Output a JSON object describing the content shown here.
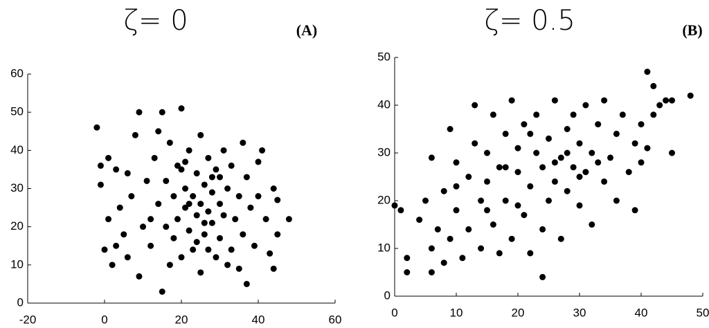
{
  "chart_data": [
    {
      "type": "scatter",
      "title": "ζ= 0",
      "panel_label": "(A)",
      "color": "#000000",
      "x": [
        -2,
        -1,
        -1,
        1,
        1,
        0,
        2,
        3,
        4,
        5,
        6,
        7,
        8,
        9,
        9,
        10,
        11,
        12,
        13,
        14,
        14,
        15,
        15,
        16,
        16,
        17,
        17,
        18,
        18,
        19,
        19,
        20,
        20,
        21,
        21,
        22,
        22,
        23,
        23,
        24,
        24,
        25,
        25,
        25,
        26,
        26,
        27,
        27,
        28,
        28,
        29,
        29,
        30,
        30,
        31,
        31,
        32,
        33,
        33,
        34,
        35,
        35,
        36,
        36,
        37,
        37,
        38,
        39,
        40,
        40,
        41,
        42,
        43,
        44,
        44,
        45,
        45,
        48,
        3,
        6,
        12,
        20,
        24,
        28,
        32,
        26,
        22,
        21,
        27,
        30
      ],
      "values": [
        46,
        36,
        31,
        38,
        22,
        14,
        10,
        35,
        25,
        18,
        12,
        28,
        44,
        50,
        7,
        20,
        32,
        15,
        38,
        45,
        26,
        50,
        3,
        20,
        32,
        42,
        10,
        28,
        17,
        36,
        22,
        51,
        12,
        30,
        25,
        19,
        40,
        28,
        14,
        34,
        23,
        26,
        44,
        8,
        31,
        18,
        24,
        38,
        21,
        29,
        12,
        35,
        26,
        17,
        40,
        23,
        30,
        14,
        36,
        22,
        28,
        9,
        42,
        18,
        5,
        33,
        25,
        15,
        37,
        28,
        40,
        22,
        13,
        30,
        9,
        18,
        27,
        22,
        15,
        34,
        22,
        35,
        16,
        33,
        10,
        21,
        26,
        37,
        14,
        33
      ],
      "xlim": [
        -20,
        60
      ],
      "ylim": [
        0,
        60
      ],
      "xticks": [
        -20,
        0,
        20,
        40,
        60
      ],
      "yticks": [
        0,
        10,
        20,
        30,
        40,
        50,
        60
      ]
    },
    {
      "type": "scatter",
      "title": "ζ= 0.5",
      "panel_label": "(B)",
      "color": "#000000",
      "x": [
        0,
        1,
        2,
        2,
        4,
        5,
        6,
        6,
        6,
        7,
        8,
        8,
        9,
        9,
        10,
        10,
        11,
        12,
        12,
        13,
        13,
        14,
        14,
        15,
        15,
        16,
        16,
        17,
        17,
        18,
        18,
        19,
        19,
        20,
        20,
        21,
        21,
        22,
        22,
        23,
        23,
        24,
        24,
        25,
        25,
        26,
        26,
        27,
        27,
        28,
        28,
        29,
        29,
        30,
        30,
        31,
        31,
        32,
        32,
        33,
        34,
        34,
        35,
        36,
        36,
        37,
        38,
        39,
        39,
        40,
        40,
        41,
        41,
        42,
        42,
        43,
        44,
        45,
        45,
        48,
        24,
        20,
        26,
        22,
        30,
        18,
        28,
        33,
        10,
        15
      ],
      "values": [
        19,
        18,
        8,
        5,
        16,
        20,
        5,
        10,
        29,
        14,
        22,
        7,
        35,
        12,
        28,
        18,
        8,
        25,
        14,
        32,
        40,
        20,
        10,
        30,
        24,
        15,
        38,
        9,
        27,
        34,
        20,
        41,
        12,
        26,
        31,
        17,
        36,
        23,
        9,
        30,
        38,
        14,
        27,
        33,
        20,
        41,
        24,
        29,
        12,
        35,
        22,
        38,
        27,
        19,
        32,
        40,
        26,
        30,
        15,
        36,
        24,
        41,
        29,
        20,
        34,
        38,
        26,
        32,
        18,
        36,
        28,
        47,
        31,
        44,
        38,
        40,
        41,
        30,
        41,
        42,
        4,
        19,
        28,
        34,
        25,
        27,
        30,
        28,
        23,
        18
      ],
      "xlim": [
        0,
        50
      ],
      "ylim": [
        0,
        50
      ],
      "xticks": [
        0,
        10,
        20,
        30,
        40,
        50
      ],
      "yticks": [
        0,
        10,
        20,
        30,
        40,
        50
      ]
    }
  ]
}
